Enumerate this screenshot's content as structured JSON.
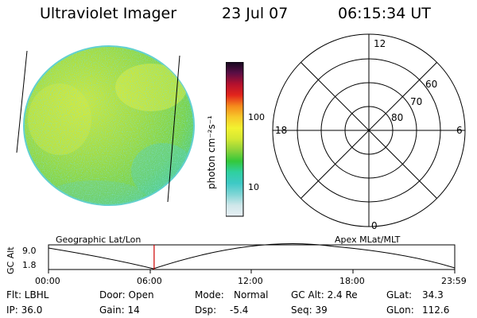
{
  "header": {
    "title": "Ultraviolet Imager",
    "date": "23 Jul 07",
    "time": "06:15:34 UT"
  },
  "colorbar": {
    "unit_label": "photon cm⁻²s⁻¹",
    "tick_100": "100",
    "tick_10": "10",
    "stops": [
      "#e8f0f4",
      "#cfe7ea",
      "#7fd5d5",
      "#3ec9c6",
      "#2fd0a0",
      "#34c83a",
      "#8ed33a",
      "#d3e833",
      "#f2f230",
      "#f7c92a",
      "#f58a1c",
      "#e2241c",
      "#b4102e",
      "#5a0e45",
      "#14081f"
    ]
  },
  "polar": {
    "mlt_12": "12",
    "mlt_18": "18",
    "mlt_6": "6",
    "mlt_0": "0",
    "lat_60": "60",
    "lat_70": "70",
    "lat_80": "80"
  },
  "timeline": {
    "left_label": "Geographic Lat/Lon",
    "right_label": "Apex MLat/MLT",
    "axis_title": "GC Alt",
    "y_max": "9.0",
    "y_min": "1.8",
    "ticks": [
      "00:00",
      "06:00",
      "12:00",
      "18:00",
      "23:59"
    ],
    "current_time_fraction": 0.26,
    "marker_color": "#cc0000"
  },
  "info": {
    "filter": "Flt: LBHL",
    "ip": "IP: 36.0",
    "door": "Door: Open",
    "gain": "Gain: 14",
    "mode_label": "Mode:",
    "mode_value": "Normal",
    "dsp_label": "Dsp:",
    "dsp_value": "-5.4",
    "gc_alt": "GC Alt: 2.4 Re",
    "seq": "Seq: 39",
    "glat_label": "GLat:",
    "glat_value": "34.3",
    "glon_label": "GLon:",
    "glon_value": "112.6"
  }
}
